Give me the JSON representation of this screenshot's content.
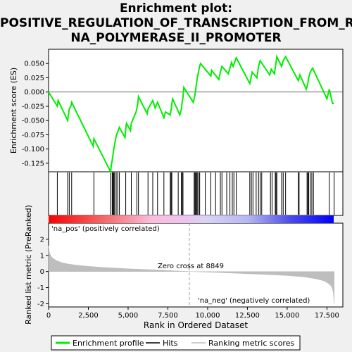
{
  "title_lines": [
    "Enrichment plot:",
    "POSITIVE_REGULATION_OF_TRANSCRIPTION_FROM_R",
    "NA_POLYMERASE_II_PROMOTER"
  ],
  "labels": {
    "pos": "'na_pos' (positively correlated)",
    "neg": "'na_neg' (negatively correlated)",
    "zero_cross": "Zero cross at 8849",
    "legend": [
      "Enrichment profile",
      "Hits",
      "Ranking metric scores"
    ]
  },
  "colors": {
    "es_line": "#00ee00",
    "hits": "#000000",
    "metric": "#bebebe",
    "pos": "#ff0000",
    "neg": "#0000ff",
    "neg_label": "#0000cc"
  },
  "chart_data": {
    "type": "line",
    "zero_cross": 8849,
    "xlim": [
      0,
      18500
    ],
    "xticks": [
      0,
      2500,
      5000,
      7500,
      10000,
      12500,
      15000,
      17500
    ],
    "xlabel": "Rank in Ordered Dataset",
    "top": {
      "ylabel": "Enrichment score (ES)",
      "ylim": [
        -0.14,
        0.075
      ],
      "yticks": [
        0.05,
        0.025,
        0.0,
        -0.025,
        -0.05,
        -0.075,
        -0.1,
        -0.125
      ],
      "ytick_labels": [
        "0.050",
        "0.025",
        "0.000",
        "-0.025",
        "-0.050",
        "-0.075",
        "-0.100",
        "-0.125"
      ],
      "es_profile": [
        [
          0,
          0.0
        ],
        [
          550,
          -0.025
        ],
        [
          600,
          -0.015
        ],
        [
          1200,
          -0.05
        ],
        [
          1250,
          -0.04
        ],
        [
          1300,
          -0.03
        ],
        [
          1400,
          -0.025
        ],
        [
          1450,
          -0.018
        ],
        [
          2800,
          -0.095
        ],
        [
          2850,
          -0.082
        ],
        [
          3900,
          -0.14
        ],
        [
          3950,
          -0.128
        ],
        [
          4000,
          -0.12
        ],
        [
          4050,
          -0.11
        ],
        [
          4100,
          -0.1
        ],
        [
          4150,
          -0.092
        ],
        [
          4200,
          -0.085
        ],
        [
          4250,
          -0.077
        ],
        [
          4350,
          -0.07
        ],
        [
          4450,
          -0.062
        ],
        [
          4800,
          -0.08
        ],
        [
          4850,
          -0.065
        ],
        [
          4900,
          -0.055
        ],
        [
          5150,
          -0.068
        ],
        [
          5200,
          -0.055
        ],
        [
          5500,
          -0.035
        ],
        [
          5600,
          -0.022
        ],
        [
          5650,
          -0.008
        ],
        [
          6200,
          -0.038
        ],
        [
          6250,
          -0.03
        ],
        [
          6550,
          -0.015
        ],
        [
          6700,
          -0.028
        ],
        [
          6850,
          -0.018
        ],
        [
          7250,
          -0.045
        ],
        [
          7350,
          -0.035
        ],
        [
          7650,
          -0.04
        ],
        [
          7700,
          -0.032
        ],
        [
          7750,
          -0.02
        ],
        [
          7800,
          -0.012
        ],
        [
          8250,
          -0.04
        ],
        [
          8350,
          -0.03
        ],
        [
          8400,
          -0.018
        ],
        [
          8450,
          -0.01
        ],
        [
          8500,
          0.008
        ],
        [
          9100,
          -0.018
        ],
        [
          9200,
          -0.005
        ],
        [
          9250,
          0.005
        ],
        [
          9300,
          0.015
        ],
        [
          9350,
          0.025
        ],
        [
          9400,
          0.032
        ],
        [
          9500,
          0.045
        ],
        [
          9550,
          0.05
        ],
        [
          10200,
          0.028
        ],
        [
          10250,
          0.038
        ],
        [
          10700,
          0.022
        ],
        [
          10800,
          0.035
        ],
        [
          10900,
          0.045
        ],
        [
          11300,
          0.032
        ],
        [
          11400,
          0.042
        ],
        [
          11500,
          0.052
        ],
        [
          11600,
          0.045
        ],
        [
          11800,
          0.06
        ],
        [
          12650,
          0.015
        ],
        [
          12750,
          0.028
        ],
        [
          12800,
          0.035
        ],
        [
          13100,
          0.025
        ],
        [
          13200,
          0.045
        ],
        [
          13300,
          0.055
        ],
        [
          13900,
          0.03
        ],
        [
          14000,
          0.04
        ],
        [
          14200,
          0.032
        ],
        [
          14300,
          0.052
        ],
        [
          14350,
          0.062
        ],
        [
          14650,
          0.045
        ],
        [
          14750,
          0.055
        ],
        [
          14900,
          0.062
        ],
        [
          15700,
          0.02
        ],
        [
          15800,
          0.03
        ],
        [
          16200,
          0.005
        ],
        [
          16300,
          0.015
        ],
        [
          16350,
          0.025
        ],
        [
          16450,
          0.035
        ],
        [
          16600,
          0.042
        ],
        [
          17500,
          -0.012
        ],
        [
          17650,
          0.005
        ],
        [
          17850,
          -0.02
        ],
        [
          17950,
          -0.02
        ]
      ],
      "hits": [
        550,
        1200,
        1300,
        1450,
        2850,
        3900,
        4000,
        4050,
        4100,
        4150,
        4250,
        4350,
        4450,
        4850,
        5200,
        5550,
        5650,
        6250,
        6550,
        6850,
        7250,
        7650,
        7700,
        7750,
        8150,
        8350,
        8400,
        8450,
        9150,
        9200,
        9250,
        9300,
        9350,
        9450,
        9500,
        9850,
        10200,
        10500,
        10800,
        10900,
        11200,
        11400,
        11550,
        11650,
        11800,
        12650,
        12750,
        12850,
        13050,
        13200,
        13300,
        13400,
        13950,
        14050,
        14250,
        14300,
        14350,
        14650,
        14750,
        14900,
        15700,
        15750,
        16250,
        16300,
        16350,
        16450,
        16550,
        16650,
        17650,
        17950
      ]
    },
    "bottom": {
      "ylabel": "Ranked list metric (PreRanked)",
      "ylim": [
        -2.2,
        3.0
      ],
      "yticks": [
        2,
        1,
        0,
        -1,
        -2
      ],
      "metric_profile": [
        [
          0,
          1.6
        ],
        [
          50,
          1.2
        ],
        [
          150,
          0.95
        ],
        [
          300,
          0.8
        ],
        [
          500,
          0.68
        ],
        [
          800,
          0.56
        ],
        [
          1200,
          0.47
        ],
        [
          1700,
          0.4
        ],
        [
          2500,
          0.32
        ],
        [
          3500,
          0.25
        ],
        [
          5000,
          0.17
        ],
        [
          7000,
          0.09
        ],
        [
          8849,
          0.0
        ],
        [
          10500,
          -0.06
        ],
        [
          12000,
          -0.12
        ],
        [
          13500,
          -0.18
        ],
        [
          15000,
          -0.25
        ],
        [
          16000,
          -0.33
        ],
        [
          16800,
          -0.45
        ],
        [
          17300,
          -0.58
        ],
        [
          17600,
          -0.75
        ],
        [
          17800,
          -0.95
        ],
        [
          17900,
          -1.3
        ],
        [
          17960,
          -2.0
        ]
      ]
    }
  }
}
